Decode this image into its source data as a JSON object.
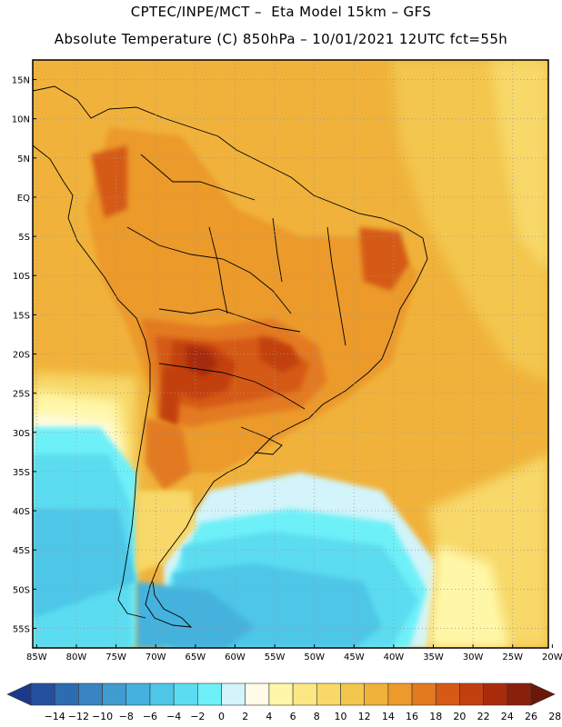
{
  "header": {
    "title_line1": "CPTEC/INPE/MCT –  Eta Model 15km – GFS",
    "title_line2": "Absolute Temperature (C) 850hPa – 10/01/2021 12UTC fct=55h"
  },
  "axes": {
    "lat_labels": [
      "15N",
      "10N",
      "5N",
      "EQ",
      "5S",
      "10S",
      "15S",
      "20S",
      "25S",
      "30S",
      "35S",
      "40S",
      "45S",
      "50S",
      "55S"
    ],
    "lat_values": [
      15,
      10,
      5,
      0,
      -5,
      -10,
      -15,
      -20,
      -25,
      -30,
      -35,
      -40,
      -45,
      -50,
      -55
    ],
    "lon_labels": [
      "85W",
      "80W",
      "75W",
      "70W",
      "65W",
      "60W",
      "55W",
      "50W",
      "45W",
      "40W",
      "35W",
      "30W",
      "25W",
      "20W"
    ],
    "lon_values": [
      -85,
      -80,
      -75,
      -70,
      -65,
      -60,
      -55,
      -50,
      -45,
      -40,
      -35,
      -30,
      -25,
      -20
    ],
    "lon_range": [
      -85.5,
      -20.5
    ],
    "lat_range": [
      -57.5,
      17.5
    ]
  },
  "colorbar": {
    "labels": [
      "-14",
      "-12",
      "-10",
      "-8",
      "-6",
      "-4",
      "-2",
      "0",
      "2",
      "4",
      "6",
      "8",
      "10",
      "12",
      "14",
      "16",
      "18",
      "20",
      "22",
      "24",
      "26",
      "28"
    ],
    "colors": [
      "#1b3a8c",
      "#24509e",
      "#2d6bb3",
      "#3a84c4",
      "#3f9cd0",
      "#45b2dd",
      "#4ec6e8",
      "#5cdcf0",
      "#6ef0f8",
      "#d2f4fa",
      "#fffbe6",
      "#fff7a8",
      "#fbe884",
      "#f7d868",
      "#f3c64e",
      "#f0b23a",
      "#ec9a2c",
      "#e37a20",
      "#d55a16",
      "#c24010",
      "#a82c0c",
      "#88200c",
      "#6a1808"
    ]
  }
}
